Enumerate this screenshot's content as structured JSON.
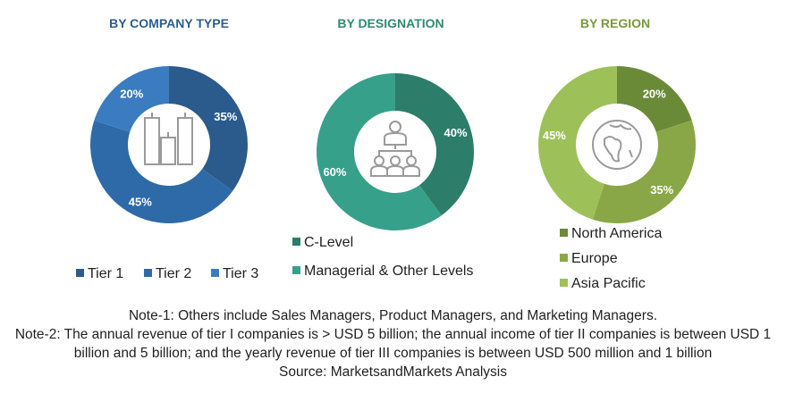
{
  "chart_data": [
    {
      "type": "pie",
      "title": "BY COMPANY TYPE",
      "title_color": "#2f5d8c",
      "icon": "buildings-icon",
      "categories": [
        "Tier 1",
        "Tier 2",
        "Tier 3"
      ],
      "values": [
        35,
        45,
        20
      ],
      "labels": [
        "35%",
        "45%",
        "20%"
      ],
      "colors": [
        "#2a5b8c",
        "#2f6aa8",
        "#3b7cc0"
      ],
      "legend": "bottom"
    },
    {
      "type": "pie",
      "title": "BY DESIGNATION",
      "title_color": "#2e8a73",
      "icon": "org-hierarchy-icon",
      "categories": [
        "C-Level",
        "Managerial & Other Levels"
      ],
      "values": [
        40,
        60
      ],
      "labels": [
        "40%",
        "60%"
      ],
      "colors": [
        "#2c7d6a",
        "#36a08a"
      ],
      "legend": "bottom"
    },
    {
      "type": "pie",
      "title": "BY REGION",
      "title_color": "#7a9a3a",
      "icon": "globe-icon",
      "categories": [
        "North America",
        "Europe",
        "Asia Pacific"
      ],
      "values": [
        20,
        35,
        45
      ],
      "labels": [
        "20%",
        "35%",
        "45%"
      ],
      "colors": [
        "#6b8a38",
        "#8aa748",
        "#9dc158"
      ],
      "legend": "bottom"
    }
  ],
  "notes": {
    "note1": "Note-1: Others include Sales Managers, Product Managers, and Marketing Managers.",
    "note2": "Note-2: The annual revenue of tier I companies is > USD 5 billion; the annual income of tier II companies is between USD 1 billion and 5 billion; and the yearly revenue of tier III companies is between USD 500 million and 1 billion",
    "source": "Source: MarketsandMarkets Analysis"
  }
}
